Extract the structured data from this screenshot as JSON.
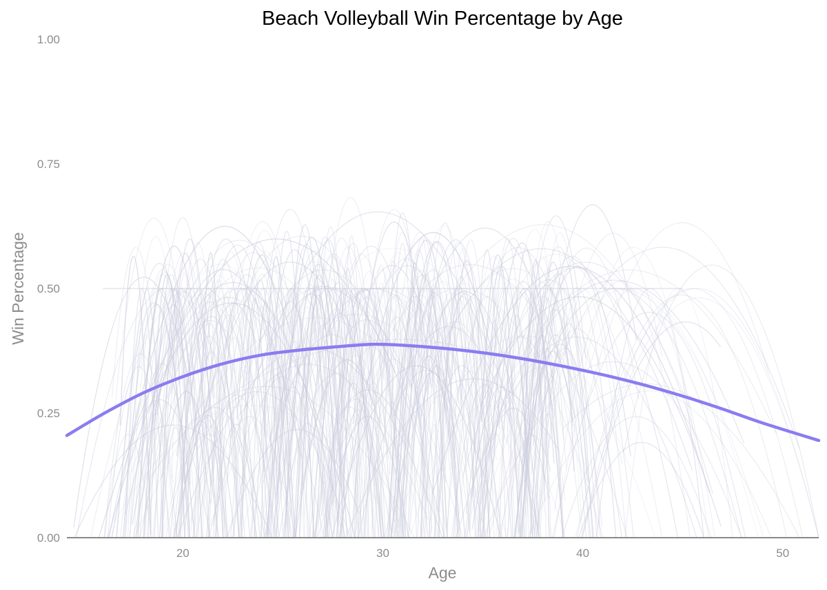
{
  "chart_data": {
    "type": "line",
    "title": "Beach Volleyball Win Percentage by Age",
    "xlabel": "Age",
    "ylabel": "Win Percentage",
    "xlim": [
      14.2,
      51.8
    ],
    "ylim": [
      0,
      1
    ],
    "x_ticks": [
      20,
      30,
      40,
      50
    ],
    "y_ticks": [
      "0.00",
      "0.25",
      "0.50",
      "0.75",
      "1.00"
    ],
    "grid": false,
    "legend": "none",
    "colors": {
      "trend": "#8a7cf0",
      "player_lines": "#c9cbdc",
      "baseline": "#888888",
      "text": "#8c8c8c"
    },
    "series": [
      {
        "x": [
          14.2,
          16,
          18,
          20,
          22,
          24,
          26,
          28,
          29.5,
          31,
          33,
          35,
          37,
          39,
          41,
          43,
          45,
          47,
          49,
          51.8
        ],
        "values": [
          0.205,
          0.248,
          0.29,
          0.323,
          0.349,
          0.367,
          0.377,
          0.384,
          0.388,
          0.386,
          0.38,
          0.371,
          0.359,
          0.344,
          0.327,
          0.307,
          0.284,
          0.258,
          0.23,
          0.195
        ]
      }
    ],
    "background_lines": {
      "description_count": 420,
      "x_range": [
        14.2,
        51.8
      ],
      "y_range": [
        0,
        1
      ],
      "reference_level": 0.5
    }
  }
}
